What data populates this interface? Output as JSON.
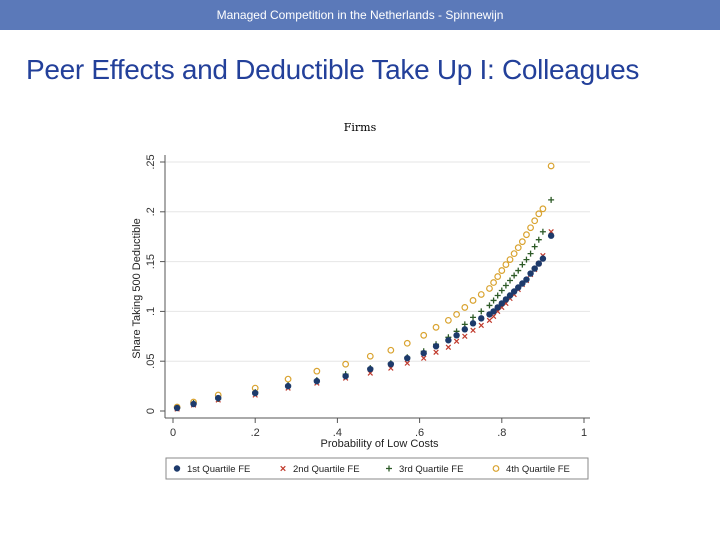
{
  "header": {
    "text": "Managed Competition in the Netherlands - Spinnewijn"
  },
  "slide": {
    "title": "Peer Effects and Deductible Take Up I: Colleagues"
  },
  "chart_data": {
    "type": "scatter",
    "title": "Firms",
    "xlabel": "Probability of Low Costs",
    "ylabel": "Share Taking 500 Deductible",
    "xlim": [
      0,
      1
    ],
    "ylim": [
      0,
      0.25
    ],
    "xticks": [
      "0",
      ".2",
      ".4",
      ".6",
      ".8",
      "1"
    ],
    "yticks": [
      "0",
      ".05",
      ".1",
      ".15",
      ".2",
      ".25"
    ],
    "series": [
      {
        "name": "1st Quartile FE",
        "color": "#1d3a6b",
        "marker": "circle",
        "x": [
          0.01,
          0.05,
          0.11,
          0.2,
          0.28,
          0.35,
          0.42,
          0.48,
          0.53,
          0.57,
          0.61,
          0.64,
          0.67,
          0.69,
          0.71,
          0.73,
          0.75,
          0.77,
          0.78,
          0.79,
          0.8,
          0.81,
          0.82,
          0.83,
          0.84,
          0.85,
          0.86,
          0.87,
          0.88,
          0.89,
          0.9,
          0.92
        ],
        "y": [
          0.003,
          0.007,
          0.013,
          0.018,
          0.025,
          0.03,
          0.035,
          0.042,
          0.047,
          0.053,
          0.058,
          0.065,
          0.071,
          0.076,
          0.082,
          0.088,
          0.093,
          0.097,
          0.1,
          0.104,
          0.108,
          0.112,
          0.116,
          0.12,
          0.124,
          0.128,
          0.132,
          0.138,
          0.143,
          0.148,
          0.153,
          0.176
        ]
      },
      {
        "name": "2nd Quartile FE",
        "color": "#c0392b",
        "marker": "x",
        "x": [
          0.01,
          0.05,
          0.11,
          0.2,
          0.28,
          0.35,
          0.42,
          0.48,
          0.53,
          0.57,
          0.61,
          0.64,
          0.67,
          0.69,
          0.71,
          0.73,
          0.75,
          0.77,
          0.78,
          0.79,
          0.8,
          0.81,
          0.82,
          0.83,
          0.84,
          0.85,
          0.86,
          0.87,
          0.88,
          0.89,
          0.9,
          0.92
        ],
        "y": [
          0.002,
          0.006,
          0.011,
          0.016,
          0.023,
          0.028,
          0.033,
          0.038,
          0.043,
          0.048,
          0.053,
          0.059,
          0.064,
          0.07,
          0.075,
          0.081,
          0.086,
          0.091,
          0.095,
          0.1,
          0.104,
          0.108,
          0.113,
          0.117,
          0.122,
          0.127,
          0.131,
          0.137,
          0.142,
          0.148,
          0.156,
          0.18
        ]
      },
      {
        "name": "3rd Quartile FE",
        "color": "#2d5a27",
        "marker": "plus",
        "x": [
          0.01,
          0.05,
          0.11,
          0.2,
          0.28,
          0.35,
          0.42,
          0.48,
          0.53,
          0.57,
          0.61,
          0.64,
          0.67,
          0.69,
          0.71,
          0.73,
          0.75,
          0.77,
          0.78,
          0.79,
          0.8,
          0.81,
          0.82,
          0.83,
          0.84,
          0.85,
          0.86,
          0.87,
          0.88,
          0.89,
          0.9,
          0.92
        ],
        "y": [
          0.003,
          0.008,
          0.012,
          0.019,
          0.026,
          0.031,
          0.037,
          0.043,
          0.048,
          0.054,
          0.06,
          0.067,
          0.074,
          0.08,
          0.087,
          0.094,
          0.1,
          0.106,
          0.111,
          0.116,
          0.121,
          0.126,
          0.131,
          0.136,
          0.141,
          0.147,
          0.152,
          0.158,
          0.165,
          0.172,
          0.18,
          0.212
        ]
      },
      {
        "name": "4th Quartile FE",
        "color": "#d9a330",
        "marker": "circle-open",
        "x": [
          0.01,
          0.05,
          0.11,
          0.2,
          0.28,
          0.35,
          0.42,
          0.48,
          0.53,
          0.57,
          0.61,
          0.64,
          0.67,
          0.69,
          0.71,
          0.73,
          0.75,
          0.77,
          0.78,
          0.79,
          0.8,
          0.81,
          0.82,
          0.83,
          0.84,
          0.85,
          0.86,
          0.87,
          0.88,
          0.89,
          0.9,
          0.92
        ],
        "y": [
          0.004,
          0.009,
          0.016,
          0.023,
          0.032,
          0.04,
          0.047,
          0.055,
          0.061,
          0.068,
          0.076,
          0.084,
          0.091,
          0.097,
          0.104,
          0.111,
          0.117,
          0.123,
          0.129,
          0.135,
          0.141,
          0.147,
          0.152,
          0.158,
          0.164,
          0.17,
          0.177,
          0.184,
          0.191,
          0.198,
          0.203,
          0.246
        ]
      }
    ]
  }
}
